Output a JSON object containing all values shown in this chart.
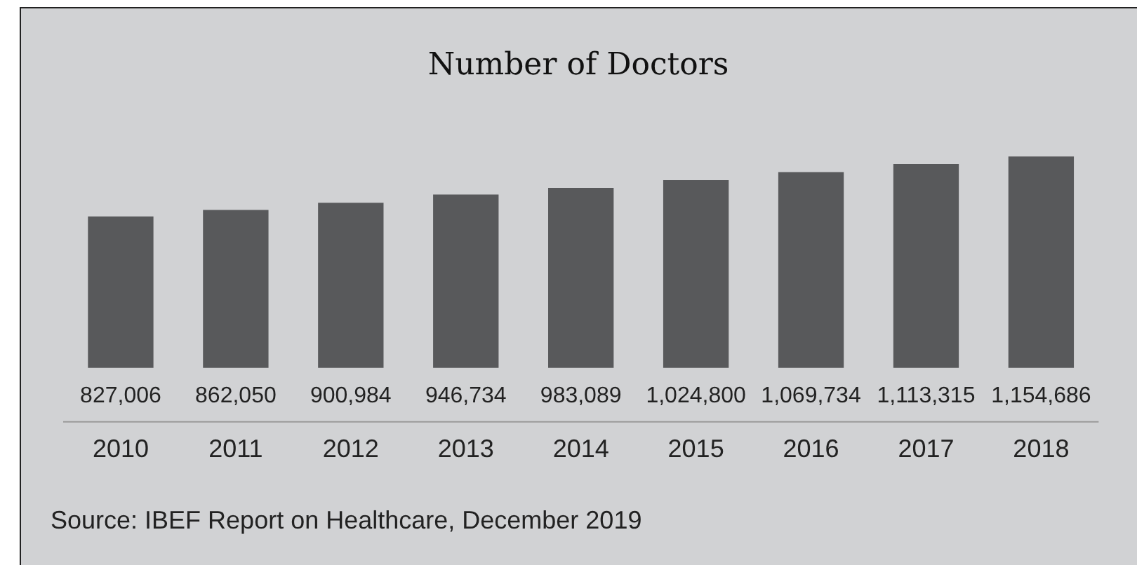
{
  "chart_data": {
    "type": "bar",
    "title": "Number of Doctors",
    "categories": [
      "2010",
      "2011",
      "2012",
      "2013",
      "2014",
      "2015",
      "2016",
      "2017",
      "2018"
    ],
    "values": [
      827006,
      862050,
      900984,
      946734,
      983089,
      1024800,
      1069734,
      1113315,
      1154686
    ],
    "color": "#58595b",
    "value_labels": [
      "827,006",
      "862,050",
      "900,984",
      "946,734",
      "983,089",
      "1,024,800",
      "1,069,734",
      "1,113,315",
      "1,154,686"
    ],
    "annotations": [
      "Source: IBEF Report on Healthcare, December 2019"
    ]
  }
}
